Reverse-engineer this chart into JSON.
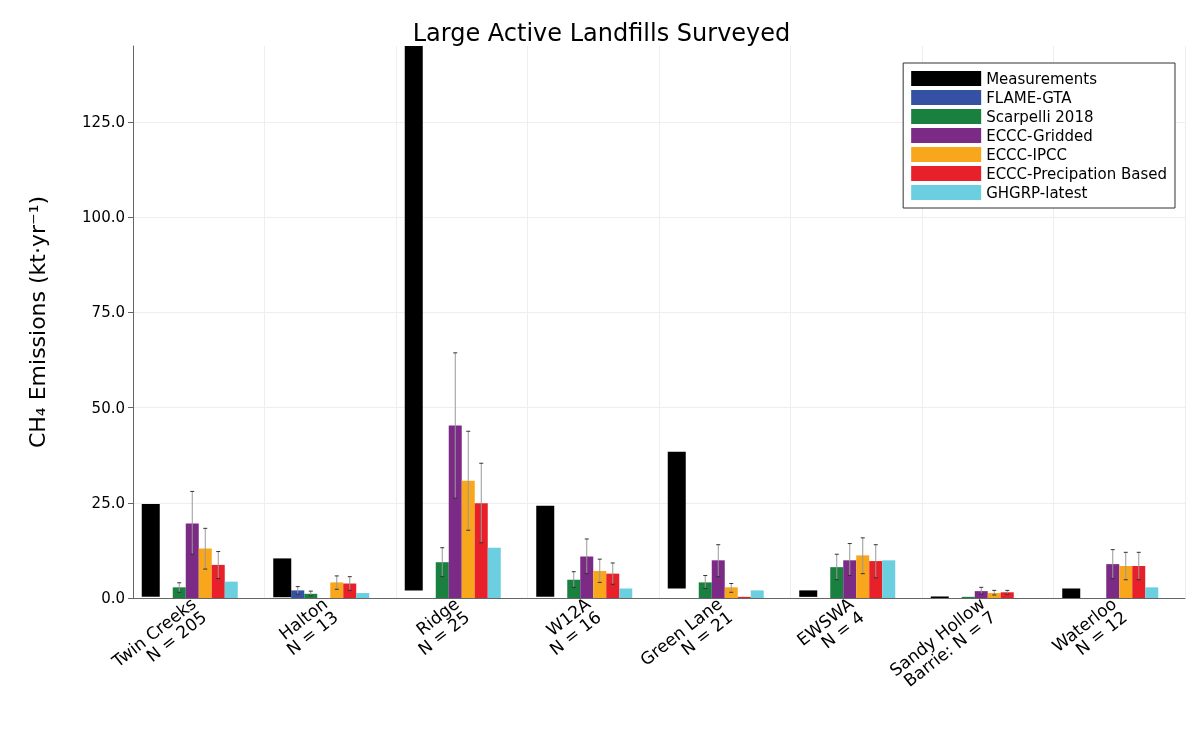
{
  "chart_data": {
    "type": "bar",
    "title": "Large Active Landfills Surveyed",
    "ylabel": "CH₄ Emissions (kt·yr⁻¹)",
    "categories": [
      "Twin Creeks\nN = 205",
      "Halton\nN = 13",
      "Ridge\nN = 25",
      "W12A\nN = 16",
      "Green Lane\nN = 21",
      "EWSWA\nN = 4",
      "Sandy Hollow\nBarrie: N = 7",
      "Waterloo\nN = 12"
    ],
    "ylim": [
      0,
      145
    ],
    "yticks": [
      {
        "value": 0,
        "label": "0.0"
      },
      {
        "value": 25,
        "label": "25.0"
      },
      {
        "value": 50,
        "label": "50.0"
      },
      {
        "value": 75,
        "label": "75.0"
      },
      {
        "value": 100,
        "label": "100.0"
      },
      {
        "value": 125,
        "label": "125.0"
      }
    ],
    "grid": true,
    "legend": "top right",
    "series": [
      {
        "name": "Measurements",
        "color": "#000000",
        "base": [
          0.3,
          0.2,
          2.0,
          0.3,
          2.5,
          0.3,
          0,
          0
        ],
        "values": [
          24.4,
          10.2,
          143,
          23.9,
          35.9,
          1.7,
          0.4,
          2.5
        ]
      },
      {
        "name": "FLAME-GTA",
        "color": "#3451a3",
        "values": [
          null,
          2.0,
          null,
          null,
          null,
          null,
          null,
          null
        ],
        "errors": [
          null,
          [
            1.0,
            3.0
          ],
          null,
          null,
          null,
          null,
          null,
          null
        ]
      },
      {
        "name": "Scarpelli 2018",
        "color": "#1a8040",
        "values": [
          2.8,
          1.1,
          9.4,
          4.8,
          4.1,
          8.1,
          0.3,
          null
        ],
        "errors": [
          [
            1.5,
            4.0
          ],
          [
            0.6,
            1.8
          ],
          [
            5.6,
            13.2
          ],
          [
            2.8,
            6.9
          ],
          [
            2.5,
            5.9
          ],
          [
            4.8,
            11.5
          ],
          null,
          null
        ]
      },
      {
        "name": "ECCC-Gridded",
        "color": "#7b2a85",
        "values": [
          19.6,
          null,
          45.3,
          10.9,
          9.9,
          9.9,
          1.8,
          8.9
        ],
        "errors": [
          [
            11.5,
            28.0
          ],
          null,
          [
            26.2,
            64.4
          ],
          [
            6.4,
            15.5
          ],
          [
            5.6,
            14.0
          ],
          [
            5.9,
            14.3
          ],
          [
            1.0,
            2.8
          ],
          [
            5.1,
            12.7
          ]
        ]
      },
      {
        "name": "ECCC-IPCC",
        "color": "#f8a61c",
        "values": [
          13.0,
          4.1,
          30.8,
          7.1,
          2.8,
          11.2,
          1.3,
          8.4
        ],
        "errors": [
          [
            7.6,
            18.3
          ],
          [
            2.3,
            5.8
          ],
          [
            17.8,
            43.8
          ],
          [
            4.1,
            10.2
          ],
          [
            1.5,
            3.8
          ],
          [
            6.4,
            15.8
          ],
          [
            0.8,
            2.0
          ],
          [
            4.8,
            12.0
          ]
        ]
      },
      {
        "name": "ECCC-Precipation Based",
        "color": "#e8202a",
        "values": [
          8.7,
          3.8,
          24.9,
          6.4,
          0.3,
          9.7,
          1.5,
          8.4
        ],
        "errors": [
          [
            5.1,
            12.2
          ],
          [
            2.0,
            5.6
          ],
          [
            14.5,
            35.4
          ],
          [
            3.6,
            9.2
          ],
          null,
          [
            5.3,
            14.0
          ],
          [
            1.0,
            2.0
          ],
          [
            4.8,
            12.0
          ]
        ]
      },
      {
        "name": "GHGRP-latest",
        "color": "#6ccfe0",
        "values": [
          4.3,
          1.3,
          13.2,
          2.5,
          2.0,
          9.9,
          null,
          2.8
        ]
      }
    ]
  }
}
